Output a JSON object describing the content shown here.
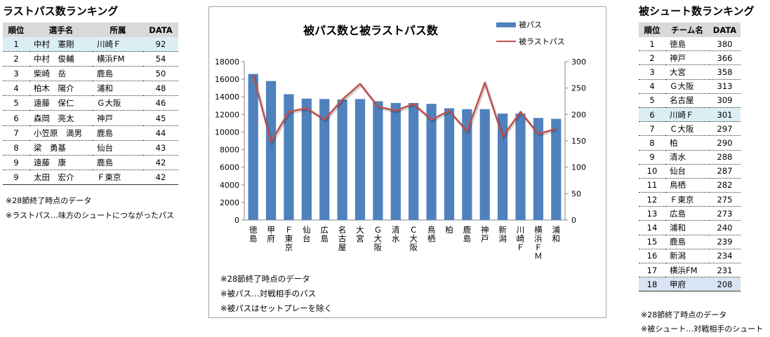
{
  "left": {
    "title": "ラストパス数ランキング",
    "headers": [
      "順位",
      "選手名",
      "所属",
      "DATA"
    ],
    "rows": [
      {
        "rank": "1",
        "player": "中村　憲剛",
        "team": "川崎Ｆ",
        "data": "92"
      },
      {
        "rank": "2",
        "player": "中村　俊輔",
        "team": "横浜FM",
        "data": "54"
      },
      {
        "rank": "3",
        "player": "柴崎　岳",
        "team": "鹿島",
        "data": "50"
      },
      {
        "rank": "4",
        "player": "柏木　陽介",
        "team": "浦和",
        "data": "48"
      },
      {
        "rank": "5",
        "player": "遠藤　保仁",
        "team": "Ｇ大阪",
        "data": "46"
      },
      {
        "rank": "6",
        "player": "森岡　亮太",
        "team": "神戸",
        "data": "45"
      },
      {
        "rank": "7",
        "player": "小笠原　満男",
        "team": "鹿島",
        "data": "44"
      },
      {
        "rank": "8",
        "player": "梁　勇基",
        "team": "仙台",
        "data": "43"
      },
      {
        "rank": "9",
        "player": "遠藤　康",
        "team": "鹿島",
        "data": "42"
      },
      {
        "rank": "9",
        "player": "太田　宏介",
        "team": "Ｆ東京",
        "data": "42"
      }
    ],
    "notes": [
      "※28節終了時点のデータ",
      "※ラストパス…味方のシュートにつながったパス"
    ]
  },
  "right": {
    "title": "被シュート数ランキング",
    "headers": [
      "順位",
      "チーム名",
      "DATA"
    ],
    "rows": [
      {
        "rank": "1",
        "team": "徳島",
        "data": "380"
      },
      {
        "rank": "2",
        "team": "神戸",
        "data": "366"
      },
      {
        "rank": "3",
        "team": "大宮",
        "data": "358"
      },
      {
        "rank": "4",
        "team": "Ｇ大阪",
        "data": "313"
      },
      {
        "rank": "5",
        "team": "名古屋",
        "data": "309"
      },
      {
        "rank": "6",
        "team": "川崎Ｆ",
        "data": "301"
      },
      {
        "rank": "7",
        "team": "Ｃ大阪",
        "data": "297"
      },
      {
        "rank": "8",
        "team": "柏",
        "data": "290"
      },
      {
        "rank": "9",
        "team": "清水",
        "data": "288"
      },
      {
        "rank": "10",
        "team": "仙台",
        "data": "287"
      },
      {
        "rank": "11",
        "team": "鳥栖",
        "data": "282"
      },
      {
        "rank": "12",
        "team": "Ｆ東京",
        "data": "275"
      },
      {
        "rank": "13",
        "team": "広島",
        "data": "273"
      },
      {
        "rank": "14",
        "team": "浦和",
        "data": "240"
      },
      {
        "rank": "15",
        "team": "鹿島",
        "data": "239"
      },
      {
        "rank": "16",
        "team": "新潟",
        "data": "234"
      },
      {
        "rank": "17",
        "team": "横浜FM",
        "data": "231"
      },
      {
        "rank": "18",
        "team": "甲府",
        "data": "208"
      }
    ],
    "notes": [
      "※28節終了時点のデータ",
      "※被シュート…対戦相手のシュート"
    ]
  },
  "chart_data": {
    "type": "bar+line",
    "title": "被パス数と被ラストパス数",
    "categories": [
      "徳島",
      "甲府",
      "Ｆ東京",
      "仙台",
      "広島",
      "名古屋",
      "大宮",
      "Ｇ大阪",
      "清水",
      "Ｃ大阪",
      "鳥栖",
      "柏",
      "鹿島",
      "神戸",
      "新潟",
      "川崎Ｆ",
      "横浜ＦＭ",
      "浦和"
    ],
    "series": [
      {
        "name": "被パス",
        "axis": "left",
        "kind": "bar",
        "color": "#4f81bd",
        "values": [
          16600,
          15800,
          14300,
          13800,
          13750,
          13700,
          13750,
          13500,
          13300,
          13300,
          13200,
          12700,
          12600,
          12600,
          12100,
          12100,
          11600,
          11500
        ]
      },
      {
        "name": "被ラストパス",
        "axis": "right",
        "kind": "line",
        "color": "#c0504d",
        "values": [
          275,
          148,
          205,
          212,
          190,
          228,
          258,
          215,
          207,
          220,
          190,
          207,
          168,
          260,
          158,
          205,
          163,
          173
        ]
      }
    ],
    "y_left": {
      "min": 0,
      "max": 18000,
      "ticks": [
        "0",
        "2000",
        "4000",
        "6000",
        "8000",
        "10000",
        "12000",
        "14000",
        "16000",
        "18000"
      ]
    },
    "y_right": {
      "min": 0,
      "max": 300,
      "ticks": [
        "0",
        "50",
        "100",
        "150",
        "200",
        "250",
        "300"
      ]
    },
    "notes": [
      "※28節終了時点のデータ",
      "※被パス…対戦相手のパス",
      "※被パスはセットプレーを除く"
    ]
  }
}
